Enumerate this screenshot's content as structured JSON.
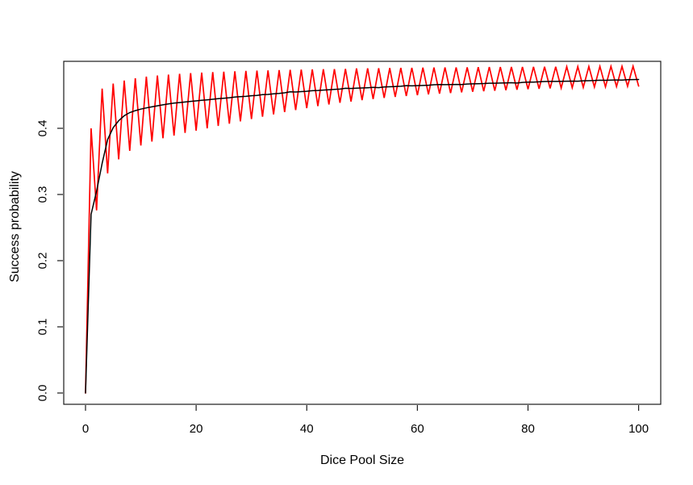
{
  "chart_data": {
    "type": "line",
    "title": "",
    "xlabel": "Dice Pool Size",
    "ylabel": "Success probability",
    "xlim": [
      -4,
      104
    ],
    "ylim": [
      -0.017,
      0.501
    ],
    "grid": false,
    "legend": "none",
    "background_color": "#ffffff",
    "axis_color": "#1a1a1a",
    "x_ticks": {
      "values": [
        0,
        20,
        40,
        60,
        80,
        100
      ],
      "labels": [
        "0",
        "20",
        "40",
        "60",
        "80",
        "100"
      ]
    },
    "y_ticks": {
      "values": [
        0.0,
        0.1,
        0.2,
        0.3,
        0.4
      ],
      "labels": [
        "0.0",
        "0.1",
        "0.2",
        "0.3",
        "0.4"
      ]
    },
    "x": [
      0,
      1,
      2,
      3,
      4,
      5,
      6,
      7,
      8,
      9,
      10,
      11,
      12,
      13,
      14,
      15,
      16,
      17,
      18,
      19,
      20,
      21,
      22,
      23,
      24,
      25,
      26,
      27,
      28,
      29,
      30,
      31,
      32,
      33,
      34,
      35,
      36,
      37,
      38,
      39,
      40,
      41,
      42,
      43,
      44,
      45,
      46,
      47,
      48,
      49,
      50,
      51,
      52,
      53,
      54,
      55,
      56,
      57,
      58,
      59,
      60,
      61,
      62,
      63,
      64,
      65,
      66,
      67,
      68,
      69,
      70,
      71,
      72,
      73,
      74,
      75,
      76,
      77,
      78,
      79,
      80,
      81,
      82,
      83,
      84,
      85,
      86,
      87,
      88,
      89,
      90,
      91,
      92,
      93,
      94,
      95,
      96,
      97,
      98,
      99,
      100
    ],
    "series": [
      {
        "name": "red-oscillating",
        "color": "#ff0000",
        "description": "exact success probability, oscillating between odd and even pool sizes",
        "values": [
          0.0,
          0.4,
          0.276,
          0.46,
          0.332,
          0.4675,
          0.353,
          0.4722,
          0.366,
          0.4756,
          0.374,
          0.478,
          0.38,
          0.4798,
          0.385,
          0.4812,
          0.389,
          0.4824,
          0.393,
          0.4834,
          0.3965,
          0.4842,
          0.4,
          0.485,
          0.4035,
          0.4856,
          0.407,
          0.4862,
          0.4105,
          0.4867,
          0.414,
          0.4872,
          0.4175,
          0.4876,
          0.421,
          0.488,
          0.4245,
          0.4884,
          0.4275,
          0.4887,
          0.4305,
          0.489,
          0.4335,
          0.4893,
          0.436,
          0.4895,
          0.4385,
          0.4898,
          0.4405,
          0.4905,
          0.4425,
          0.4907,
          0.4443,
          0.4909,
          0.446,
          0.4911,
          0.4475,
          0.4913,
          0.4488,
          0.4915,
          0.45,
          0.4917,
          0.4512,
          0.4918,
          0.4523,
          0.492,
          0.4533,
          0.4921,
          0.4543,
          0.4922,
          0.4552,
          0.4924,
          0.456,
          0.4925,
          0.4568,
          0.4926,
          0.4576,
          0.4927,
          0.4583,
          0.4928,
          0.459,
          0.4929,
          0.4596,
          0.493,
          0.4602,
          0.4931,
          0.4608,
          0.4932,
          0.4613,
          0.4933,
          0.4618,
          0.4934,
          0.4623,
          0.4935,
          0.4627,
          0.4936,
          0.4631,
          0.4937,
          0.4635,
          0.4938,
          0.4639
        ]
      },
      {
        "name": "black-smooth",
        "color": "#000000",
        "description": "smooth success probability curve rising toward ~0.48",
        "values": [
          0.0,
          0.27,
          0.305,
          0.347,
          0.383,
          0.401,
          0.4115,
          0.419,
          0.4238,
          0.4267,
          0.429,
          0.4308,
          0.4325,
          0.434,
          0.4355,
          0.4368,
          0.438,
          0.4389,
          0.4398,
          0.4407,
          0.4415,
          0.4423,
          0.443,
          0.4439,
          0.4447,
          0.4455,
          0.4462,
          0.4472,
          0.4478,
          0.4483,
          0.4493,
          0.4498,
          0.4508,
          0.4512,
          0.4522,
          0.4528,
          0.4536,
          0.4551,
          0.4549,
          0.4555,
          0.456,
          0.4568,
          0.4572,
          0.4578,
          0.4583,
          0.4588,
          0.4593,
          0.4605,
          0.4602,
          0.4606,
          0.461,
          0.4614,
          0.4618,
          0.4615,
          0.4625,
          0.4628,
          0.4632,
          0.4635,
          0.4645,
          0.4642,
          0.4645,
          0.4648,
          0.4651,
          0.4658,
          0.4662,
          0.466,
          0.4662,
          0.4664,
          0.4662,
          0.4669,
          0.4672,
          0.4674,
          0.4677,
          0.4682,
          0.4682,
          0.4684,
          0.4687,
          0.4689,
          0.4684,
          0.4694,
          0.4697,
          0.4699,
          0.4702,
          0.4707,
          0.4709,
          0.4708,
          0.471,
          0.4712,
          0.4714,
          0.4712,
          0.4718,
          0.472,
          0.4722,
          0.4727,
          0.4726,
          0.4728,
          0.473,
          0.4728,
          0.4734,
          0.4736,
          0.4738
        ]
      }
    ]
  }
}
